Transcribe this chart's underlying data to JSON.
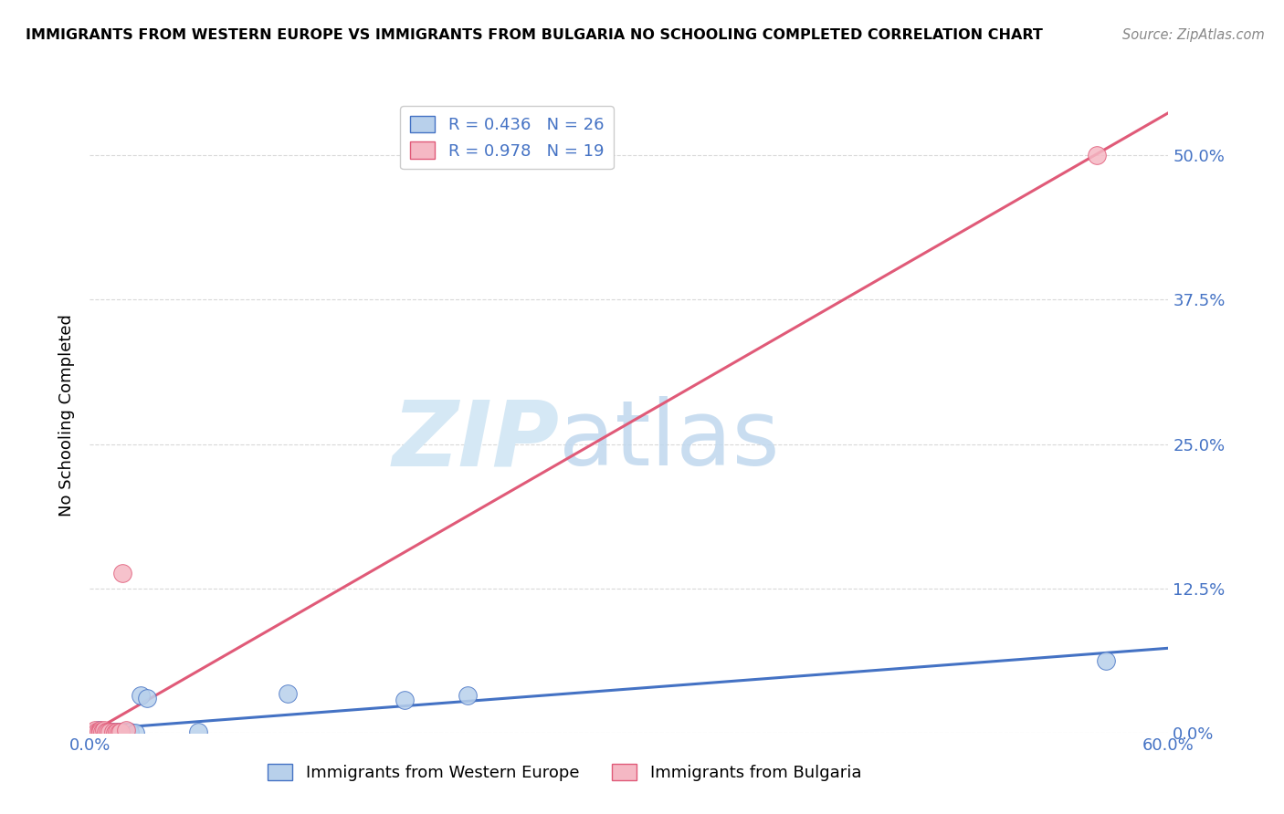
{
  "title": "IMMIGRANTS FROM WESTERN EUROPE VS IMMIGRANTS FROM BULGARIA NO SCHOOLING COMPLETED CORRELATION CHART",
  "source": "Source: ZipAtlas.com",
  "ylabel": "No Schooling Completed",
  "xlim": [
    0.0,
    0.6
  ],
  "ylim": [
    0.0,
    0.55
  ],
  "yticks": [
    0.0,
    0.125,
    0.25,
    0.375,
    0.5
  ],
  "ytick_labels": [
    "0.0%",
    "12.5%",
    "25.0%",
    "37.5%",
    "50.0%"
  ],
  "xtick_labels": [
    "0.0%",
    "",
    "",
    "",
    "",
    "",
    "60.0%"
  ],
  "legend_label1": "Immigrants from Western Europe",
  "legend_label2": "Immigrants from Bulgaria",
  "color_western_fill": "#b8d0eb",
  "color_western_edge": "#4472c4",
  "color_bulgaria_fill": "#f5b8c4",
  "color_bulgaria_edge": "#e05a78",
  "color_blue": "#4472c4",
  "color_pink": "#e05a78",
  "color_grid": "#d8d8d8",
  "western_x": [
    0.003,
    0.005,
    0.006,
    0.007,
    0.008,
    0.009,
    0.01,
    0.011,
    0.012,
    0.013,
    0.014,
    0.015,
    0.016,
    0.017,
    0.018,
    0.019,
    0.02,
    0.022,
    0.025,
    0.028,
    0.032,
    0.06,
    0.11,
    0.175,
    0.21,
    0.565
  ],
  "western_y": [
    0.001,
    0.002,
    0.001,
    0.001,
    0.0,
    0.001,
    0.001,
    0.0,
    0.001,
    0.0,
    0.001,
    0.0,
    0.001,
    0.0,
    0.001,
    0.0,
    0.001,
    0.001,
    0.0,
    0.032,
    0.03,
    0.001,
    0.034,
    0.028,
    0.032,
    0.062
  ],
  "bulgaria_x": [
    0.002,
    0.003,
    0.004,
    0.005,
    0.006,
    0.006,
    0.007,
    0.008,
    0.009,
    0.01,
    0.011,
    0.013,
    0.014,
    0.015,
    0.016,
    0.017,
    0.018,
    0.02,
    0.56
  ],
  "bulgaria_y": [
    0.001,
    0.002,
    0.001,
    0.001,
    0.002,
    0.001,
    0.001,
    0.002,
    0.001,
    0.001,
    0.001,
    0.001,
    0.0,
    0.001,
    0.0,
    0.001,
    0.138,
    0.002,
    0.5
  ],
  "background_color": "#ffffff"
}
